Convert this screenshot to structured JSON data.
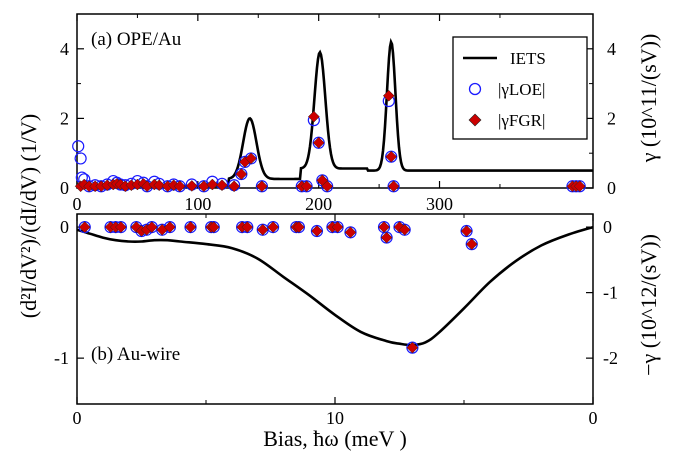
{
  "chart_data": [
    {
      "panel": "a",
      "type": "line",
      "label": "(a) OPE/Au",
      "x_top_ticks": [
        "0",
        "100",
        "200",
        "300"
      ],
      "xlim": [
        0,
        427
      ],
      "ylim_left": [
        0,
        5
      ],
      "ylim_right": [
        0,
        5
      ],
      "y_left_ticks": [
        "0",
        "2",
        "4"
      ],
      "y_right_ticks": [
        "0",
        "2",
        "4"
      ],
      "right_axis_label": "γ (10^11/(sV))",
      "legend_position": "top-right",
      "legend": [
        "IETS",
        "|γLOE|",
        "|γFGR|"
      ],
      "series": [
        {
          "name": "IETS",
          "kind": "line",
          "baseline": 0.5,
          "peaks": [
            {
              "center": 143,
              "height": 2.0,
              "width": 5.5
            },
            {
              "center": 201,
              "height": 3.9,
              "width": 4.5
            },
            {
              "center": 260,
              "height": 4.2,
              "width": 3.5
            }
          ],
          "x": [
            0,
            20,
            40,
            60,
            80,
            100,
            110,
            120,
            130,
            136,
            140,
            143,
            146,
            150,
            156,
            165,
            175,
            185,
            192,
            196,
            199,
            201,
            203,
            206,
            210,
            220,
            240,
            250,
            255,
            258,
            260,
            262,
            265,
            270,
            290,
            330,
            380,
            427
          ],
          "y": [
            0.06,
            0.06,
            0.05,
            0.05,
            0.05,
            0.05,
            0.06,
            0.08,
            0.26,
            0.93,
            1.66,
            2.0,
            1.65,
            0.92,
            0.27,
            0.25,
            0.26,
            0.27,
            0.48,
            2.18,
            3.51,
            3.9,
            3.51,
            2.2,
            0.65,
            0.55,
            0.56,
            0.56,
            2.05,
            3.62,
            4.2,
            3.62,
            1.6,
            0.57,
            0.52,
            0.5,
            0.5,
            0.5
          ]
        },
        {
          "name": "|γLOE|",
          "kind": "open-circle",
          "x": [
            1,
            3,
            4,
            6,
            10,
            15,
            20,
            25,
            30,
            33,
            36,
            40,
            45,
            50,
            55,
            58,
            64,
            68,
            75,
            80,
            85,
            95,
            105,
            112,
            120,
            130,
            136,
            139,
            144,
            153,
            186,
            190,
            196,
            200,
            203,
            207,
            258,
            260,
            262,
            410,
            413,
            416
          ],
          "y": [
            1.2,
            0.85,
            0.3,
            0.25,
            0.05,
            0.08,
            0.05,
            0.1,
            0.2,
            0.15,
            0.1,
            0.08,
            0.12,
            0.2,
            0.15,
            0.05,
            0.18,
            0.12,
            0.05,
            0.1,
            0.05,
            0.1,
            0.05,
            0.18,
            0.12,
            0.08,
            0.4,
            0.75,
            0.85,
            0.05,
            0.05,
            0.05,
            1.95,
            1.3,
            0.22,
            0.05,
            2.5,
            0.9,
            0.05,
            0.05,
            0.05,
            0.05
          ]
        },
        {
          "name": "|γFGR|",
          "kind": "filled-diamond",
          "x": [
            3,
            6,
            10,
            15,
            20,
            25,
            30,
            33,
            36,
            40,
            45,
            50,
            55,
            58,
            64,
            68,
            75,
            80,
            85,
            95,
            105,
            112,
            120,
            130,
            136,
            139,
            144,
            153,
            186,
            190,
            196,
            200,
            203,
            207,
            258,
            260,
            262,
            410,
            413,
            416
          ],
          "y": [
            0.05,
            0.1,
            0.05,
            0.05,
            0.05,
            0.08,
            0.1,
            0.12,
            0.1,
            0.05,
            0.08,
            0.1,
            0.12,
            0.05,
            0.1,
            0.08,
            0.05,
            0.08,
            0.05,
            0.06,
            0.05,
            0.1,
            0.08,
            0.05,
            0.4,
            0.75,
            0.85,
            0.05,
            0.05,
            0.05,
            2.05,
            1.3,
            0.22,
            0.05,
            2.65,
            0.9,
            0.05,
            0.05,
            0.05,
            0.05
          ]
        }
      ]
    },
    {
      "panel": "b",
      "type": "line",
      "label": "(b) Au-wire",
      "x_bottom_ticks": [
        "0",
        "10",
        "0"
      ],
      "xlim": [
        0,
        20
      ],
      "ylim_left": [
        -1.35,
        0.1
      ],
      "ylim_right": [
        -2.7,
        0.2
      ],
      "y_left_ticks": [
        "0",
        "-1"
      ],
      "y_right_ticks": [
        "0",
        "-1",
        "-2"
      ],
      "right_axis_label": "−γ (10^12/(sV))",
      "series": [
        {
          "name": "IETS",
          "kind": "line",
          "x": [
            0,
            0.5,
            1,
            1.5,
            2,
            2.5,
            3,
            3.5,
            4,
            5,
            6,
            7,
            8,
            9,
            10,
            11,
            12,
            12.5,
            13,
            13.5,
            14,
            15,
            16,
            17,
            18,
            19,
            20
          ],
          "y": [
            -0.02,
            -0.05,
            -0.08,
            -0.1,
            -0.11,
            -0.11,
            -0.1,
            -0.1,
            -0.11,
            -0.13,
            -0.16,
            -0.24,
            -0.38,
            -0.52,
            -0.67,
            -0.8,
            -0.87,
            -0.89,
            -0.9,
            -0.88,
            -0.81,
            -0.62,
            -0.42,
            -0.26,
            -0.14,
            -0.06,
            0.0
          ]
        },
        {
          "name": "|γLOE|",
          "kind": "open-circle",
          "x": [
            0.3,
            1.3,
            1.5,
            1.7,
            2.3,
            2.5,
            2.7,
            2.9,
            3.3,
            3.6,
            4.4,
            5.2,
            5.3,
            6.4,
            6.6,
            7.2,
            7.6,
            8.5,
            8.6,
            9.3,
            9.9,
            10.1,
            10.6,
            11.9,
            12.0,
            12.5,
            12.7,
            13.0,
            15.1,
            15.3
          ],
          "y": [
            0.0,
            0.0,
            0.0,
            0.0,
            0.0,
            -0.03,
            -0.02,
            0.0,
            -0.02,
            0.0,
            0.0,
            0.0,
            0.0,
            0.0,
            0.0,
            -0.02,
            0.0,
            0.0,
            0.0,
            -0.03,
            0.0,
            0.0,
            -0.04,
            0.0,
            -0.08,
            0.0,
            -0.02,
            -0.92,
            -0.03,
            -0.13
          ]
        },
        {
          "name": "|γFGR|",
          "kind": "filled-diamond",
          "x": [
            0.3,
            1.3,
            1.5,
            1.7,
            2.3,
            2.5,
            2.7,
            2.9,
            3.3,
            3.6,
            4.4,
            5.2,
            5.3,
            6.4,
            6.6,
            7.2,
            7.6,
            8.5,
            8.6,
            9.3,
            9.9,
            10.1,
            10.6,
            11.9,
            12.0,
            12.5,
            12.7,
            13.0,
            15.1,
            15.3
          ],
          "y": [
            0.0,
            0.0,
            0.0,
            0.0,
            0.0,
            -0.03,
            -0.02,
            0.0,
            -0.02,
            0.0,
            0.0,
            0.0,
            0.0,
            0.0,
            0.0,
            -0.02,
            0.0,
            0.0,
            0.0,
            -0.03,
            0.0,
            0.0,
            -0.04,
            0.0,
            -0.08,
            0.0,
            -0.02,
            -0.92,
            -0.03,
            -0.13
          ]
        }
      ]
    }
  ],
  "left_axis_label": "(d²I/dV²)/(dI/dV) (1/V)",
  "x_axis_label": "Bias, ħω (meV )",
  "colors": {
    "line": "#000000",
    "circle": "#1a1aff",
    "diamond": "#cc0000",
    "frame": "#000000"
  }
}
